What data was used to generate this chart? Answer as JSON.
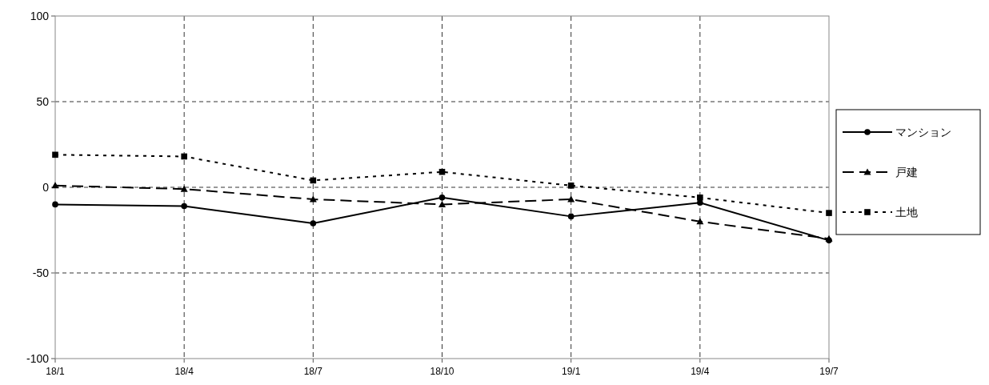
{
  "chart_data": {
    "type": "line",
    "categories": [
      "18/1",
      "18/4",
      "18/7",
      "18/10",
      "19/1",
      "19/4",
      "19/7"
    ],
    "ylim": [
      -100,
      100
    ],
    "yticks": [
      -100,
      -50,
      0,
      50,
      100
    ],
    "grid": true,
    "legend": "right",
    "series": [
      {
        "name": "マンション",
        "color": "#000000",
        "marker": "circle",
        "line_style": "solid",
        "values": [
          -10,
          -11,
          -21,
          -6,
          -17,
          -9,
          -31
        ]
      },
      {
        "name": "戸建",
        "color": "#000000",
        "marker": "triangle",
        "line_style": "dashed",
        "values": [
          1,
          -1,
          -7,
          -10,
          -7,
          -20,
          -30
        ]
      },
      {
        "name": "土地",
        "color": "#000000",
        "marker": "square",
        "line_style": "dotted",
        "values": [
          19,
          18,
          4,
          9,
          1,
          -6,
          -15
        ]
      }
    ]
  }
}
